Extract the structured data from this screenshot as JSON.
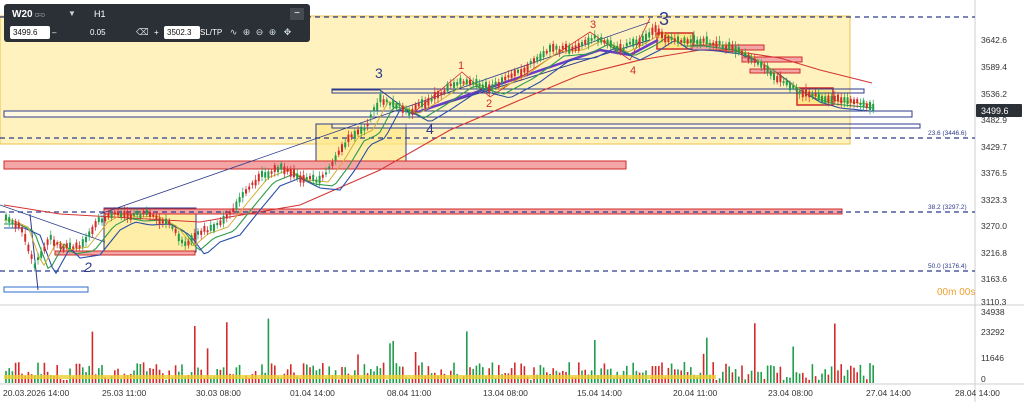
{
  "toolbar": {
    "symbol": "W20",
    "symbol_tag": "CFD",
    "timeframe": "H1",
    "sell_price": "3499.6",
    "minus": "–",
    "volume": "0.05",
    "plus": "+",
    "buy_price": "3502.3",
    "sltp": "SL/TP",
    "minimize": "−",
    "icons": [
      "trash-icon",
      "line-chart-icon",
      "crosshair-icon",
      "zoom-out-icon",
      "zoom-in-icon",
      "move-icon"
    ]
  },
  "price_axis": {
    "ticks": [
      "3642.6",
      "3589.4",
      "3536.2",
      "3482.9",
      "3429.7",
      "3376.5",
      "3323.3",
      "3270.0",
      "3216.8",
      "3163.6",
      "3110.3"
    ],
    "current_price": "3499.6",
    "timer": "00m 00s"
  },
  "volume_axis": {
    "ticks": [
      "34938",
      "23292",
      "11646",
      "0"
    ]
  },
  "time_axis": {
    "ticks": [
      "20.03.2026 14:00",
      "25.03 11:00",
      "30.03 08:00",
      "01.04 14:00",
      "08.04 11:00",
      "13.04 08:00",
      "15.04 14:00",
      "20.04 11:00",
      "23.04 08:00",
      "27.04 14:00",
      "28.04 14:00"
    ]
  },
  "fib_labels": [
    "23.6 (3446.6)",
    "38.2 (3297.2)",
    "50.0 (3176.4)"
  ],
  "wave_labels": {
    "blue": [
      "3",
      "4",
      "2",
      "3"
    ],
    "red": [
      "1",
      "2",
      "3",
      "4"
    ]
  },
  "colors": {
    "zone_fill": "#ffe88a",
    "zone_stroke": "#e8c24a",
    "red_zone": "#f4a6a6",
    "red_stroke": "#d12b2b",
    "blue_line": "#2c3a8c",
    "candle_up": "#1e9e4a",
    "candle_down": "#d42a2a",
    "ma_green": "#2e9a4a",
    "ma_blue": "#2b4fa8",
    "ma_red": "#d43535",
    "wave_purple": "#6a3bc7",
    "timer": "#f0a030"
  }
}
